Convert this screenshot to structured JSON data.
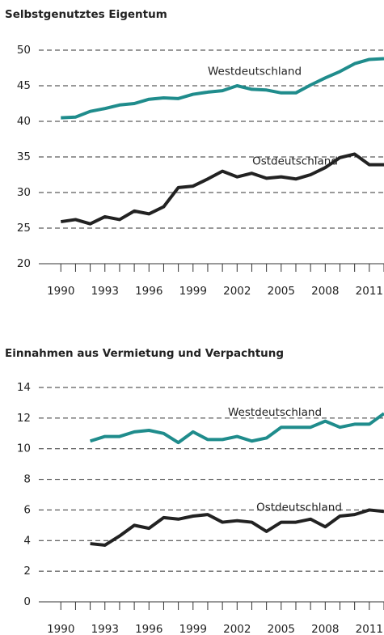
{
  "chart_data": [
    {
      "type": "line",
      "title": "Selbstgenutztes Eigentum",
      "x": [
        1990,
        1991,
        1992,
        1993,
        1994,
        1995,
        1996,
        1997,
        1998,
        1999,
        2000,
        2001,
        2002,
        2003,
        2004,
        2005,
        2006,
        2007,
        2008,
        2009,
        2010,
        2011,
        2012
      ],
      "series": [
        {
          "name": "Westdeutschland",
          "color": "#1f8c8c",
          "values": [
            40.5,
            40.6,
            41.4,
            41.8,
            42.3,
            42.5,
            43.1,
            43.3,
            43.2,
            43.8,
            44.1,
            44.3,
            45.0,
            44.5,
            44.4,
            44.0,
            44.0,
            45.1,
            46.1,
            47.0,
            48.1,
            48.7,
            48.8
          ]
        },
        {
          "name": "Ostdeutschland",
          "color": "#222222",
          "values": [
            25.9,
            26.2,
            25.6,
            26.6,
            26.2,
            27.4,
            27.0,
            28.0,
            30.7,
            30.9,
            31.9,
            33.0,
            32.2,
            32.7,
            32.0,
            32.2,
            31.9,
            32.5,
            33.5,
            34.9,
            35.4,
            33.9,
            33.9
          ]
        }
      ],
      "xlim": [
        1988.5,
        2012
      ],
      "xticks": [
        1990,
        1993,
        1996,
        1999,
        2002,
        2005,
        2008,
        2011
      ],
      "ylim": [
        20,
        50
      ],
      "yticks": [
        20,
        25,
        30,
        35,
        40,
        45,
        50
      ],
      "grid": true
    },
    {
      "type": "line",
      "title": "Einnahmen aus Vermietung und Verpachtung",
      "x": [
        1990,
        1991,
        1992,
        1993,
        1994,
        1995,
        1996,
        1997,
        1998,
        1999,
        2000,
        2001,
        2002,
        2003,
        2004,
        2005,
        2006,
        2007,
        2008,
        2009,
        2010,
        2011,
        2012
      ],
      "series": [
        {
          "name": "Westdeutschland",
          "color": "#1f8c8c",
          "values": [
            null,
            null,
            10.5,
            10.8,
            10.8,
            11.1,
            11.2,
            11.0,
            10.4,
            11.1,
            10.6,
            10.6,
            10.8,
            10.5,
            10.7,
            11.4,
            11.4,
            11.4,
            11.8,
            11.4,
            11.6,
            11.6,
            12.3
          ]
        },
        {
          "name": "Ostdeutschland",
          "color": "#222222",
          "values": [
            null,
            null,
            3.8,
            3.7,
            4.3,
            5.0,
            4.8,
            5.5,
            5.4,
            5.6,
            5.7,
            5.2,
            5.3,
            5.2,
            4.6,
            5.2,
            5.2,
            5.4,
            4.9,
            5.6,
            5.7,
            6.0,
            5.9
          ]
        }
      ],
      "xlim": [
        1988.5,
        2012
      ],
      "xticks": [
        1990,
        1993,
        1996,
        1999,
        2002,
        2005,
        2008,
        2011
      ],
      "ylim": [
        0,
        14
      ],
      "yticks": [
        0,
        2,
        4,
        6,
        8,
        10,
        12,
        14
      ],
      "grid": true
    }
  ]
}
